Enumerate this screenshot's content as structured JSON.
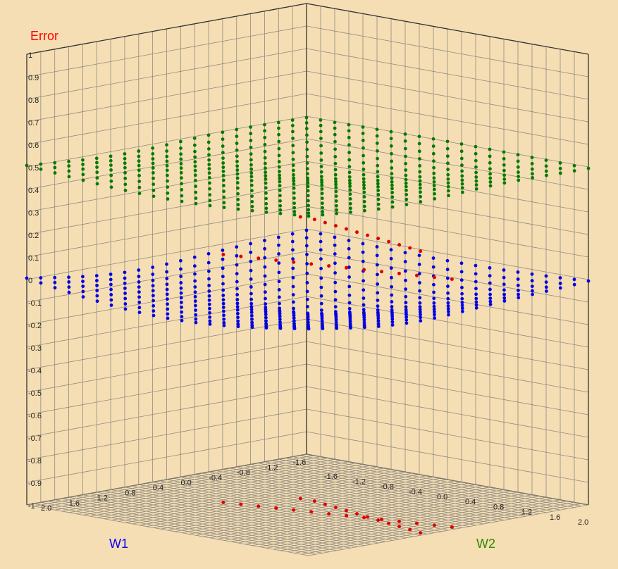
{
  "chart_data": {
    "type": "scatter",
    "projection": "3d",
    "axes": {
      "error": {
        "label": "Error",
        "range": [
          -1,
          1
        ],
        "ticks": [
          "1",
          "0.9",
          "0.8",
          "0.7",
          "0.6",
          "0.5",
          "0.4",
          "0.3",
          "0.2",
          "0.1",
          "0",
          "-0.1",
          "-0.2",
          "-0.3",
          "-0.4",
          "-0.5",
          "-0.6",
          "-0.7",
          "-0.8",
          "-0.9",
          "-1"
        ]
      },
      "w1": {
        "label": "W1",
        "range": [
          -2,
          2
        ],
        "ticks": [
          "2.0",
          "1.6",
          "1.2",
          "0.8",
          "0.4",
          "0.0",
          "-0.4",
          "-0.8",
          "-1.2",
          "-1.6"
        ]
      },
      "w2": {
        "label": "W2",
        "range": [
          -2,
          2
        ],
        "ticks": [
          "-1.6",
          "-1.2",
          "-0.8",
          "-0.4",
          "0.0",
          "0.4",
          "0.8",
          "1.2",
          "1.6",
          "2.0"
        ]
      }
    },
    "grid": true,
    "series": [
      {
        "color": "#007a00",
        "surface": "upper",
        "w_range": [
          -2,
          2
        ],
        "samples": 21,
        "center_error": 0.45,
        "corner_error": 0.5
      },
      {
        "color": "#0000e6",
        "surface": "lower",
        "w_range": [
          -2,
          2
        ],
        "samples": 21,
        "center_error": -0.15,
        "corner_error": 0
      },
      {
        "color": "#e00000",
        "surface": "path",
        "points": [
          [
            -0.2,
            -0.3,
            0.25
          ],
          [
            -0.2,
            -0.1,
            0.25
          ],
          [
            -0.15,
            0.1,
            0.25
          ],
          [
            -0.1,
            0.3,
            0.25
          ],
          [
            -0.05,
            0.5,
            0.25
          ],
          [
            0.0,
            0.7,
            0.25
          ],
          [
            0.05,
            0.9,
            0.25
          ],
          [
            0.1,
            1.1,
            0.25
          ],
          [
            0.15,
            1.3,
            0.25
          ],
          [
            0.2,
            1.5,
            0.25
          ],
          [
            0.25,
            1.7,
            0.25
          ],
          [
            0.3,
            1.9,
            0.25
          ],
          [
            0.5,
            -0.7,
            0.1
          ],
          [
            0.45,
            -0.5,
            0.1
          ],
          [
            0.4,
            -0.3,
            0.1
          ],
          [
            0.35,
            -0.1,
            0.1
          ],
          [
            0.3,
            0.1,
            0.1
          ],
          [
            0.25,
            0.3,
            0.1
          ],
          [
            0.2,
            0.5,
            0.1
          ],
          [
            0.15,
            0.7,
            0.1
          ],
          [
            0.1,
            0.9,
            0.1
          ],
          [
            0.05,
            1.1,
            0.1
          ],
          [
            0.0,
            1.3,
            0.1
          ],
          [
            -0.05,
            1.5,
            0.1
          ],
          [
            -0.1,
            1.7,
            0.1
          ],
          [
            -0.15,
            1.9,
            0.1
          ]
        ]
      }
    ]
  }
}
